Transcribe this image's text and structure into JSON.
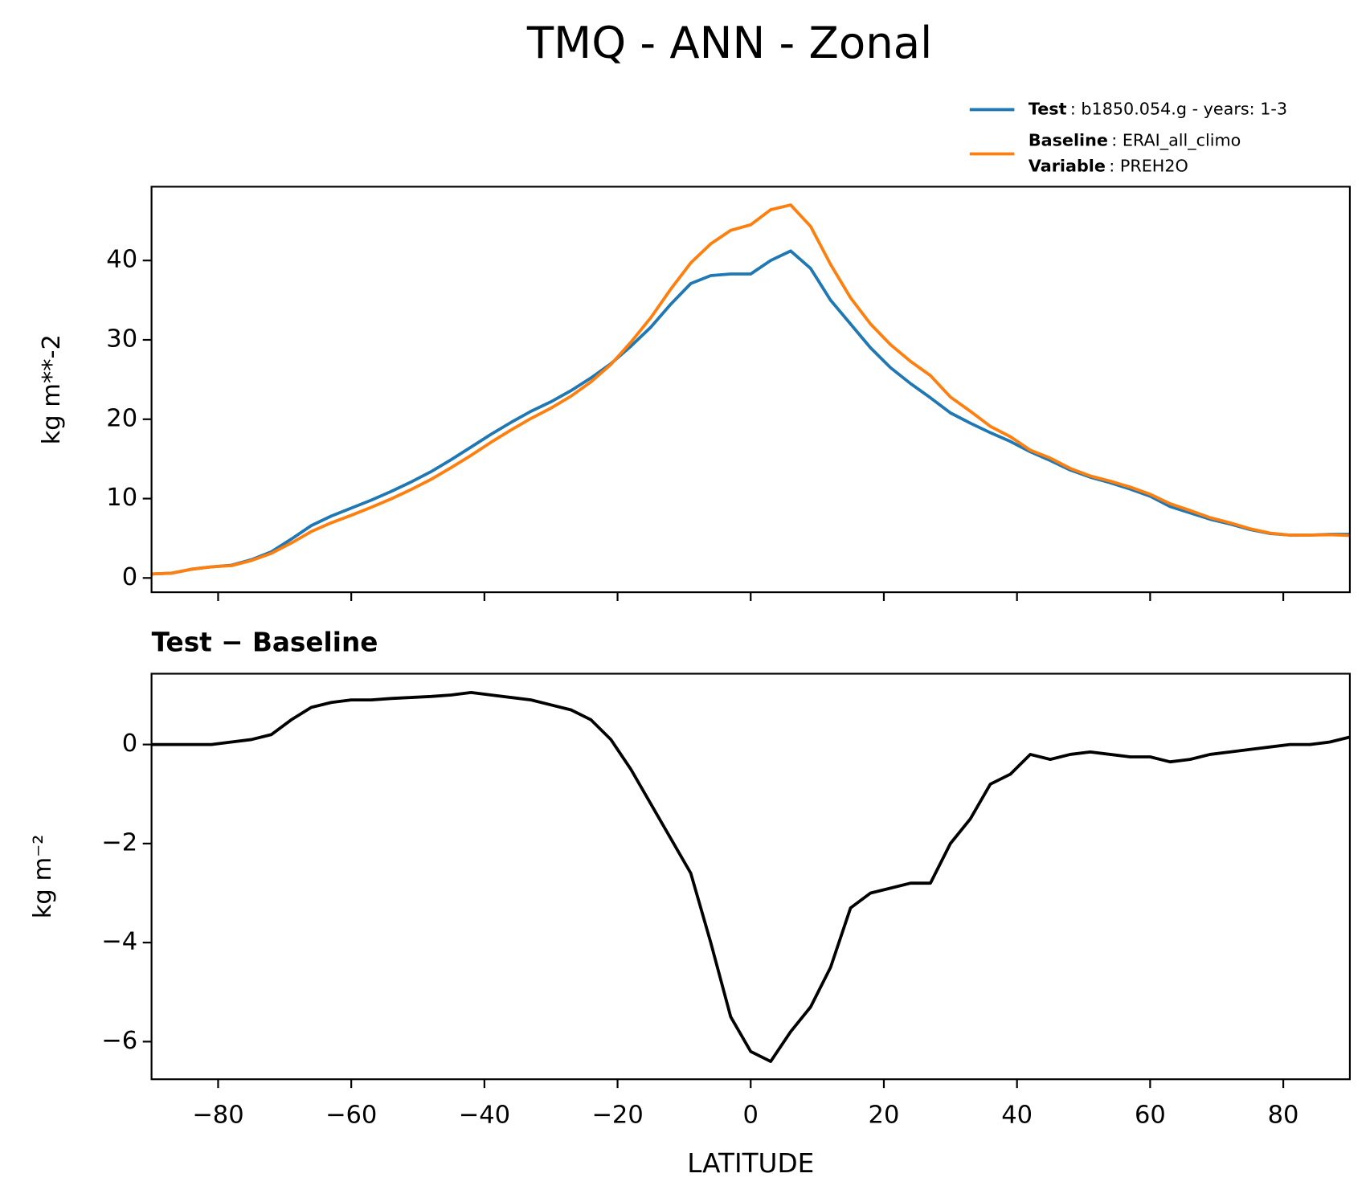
{
  "chart_data": [
    {
      "type": "line",
      "title": "TMQ - ANN - Zonal",
      "ylabel": "kg m**-2",
      "xlim": [
        -90,
        90
      ],
      "ylim": [
        -1.8,
        49.3
      ],
      "yticks": [
        0,
        10,
        20,
        30,
        40
      ],
      "x": [
        -90,
        -87,
        -84,
        -81,
        -78,
        -75,
        -72,
        -69,
        -66,
        -63,
        -60,
        -57,
        -54,
        -51,
        -48,
        -45,
        -42,
        -39,
        -36,
        -33,
        -30,
        -27,
        -24,
        -21,
        -18,
        -15,
        -12,
        -9,
        -6,
        -3,
        0,
        3,
        6,
        9,
        12,
        15,
        18,
        21,
        24,
        27,
        30,
        33,
        36,
        39,
        42,
        45,
        48,
        51,
        54,
        57,
        60,
        63,
        66,
        69,
        72,
        75,
        78,
        81,
        84,
        87,
        90
      ],
      "series": [
        {
          "name": "Test",
          "legend_lines": [
            {
              "key": "Test",
              "text": ": b1850.054.g - years: 1-3"
            }
          ],
          "color": "#1f77b4",
          "values": [
            0.5,
            0.6,
            1.1,
            1.4,
            1.6,
            2.3,
            3.3,
            4.9,
            6.6,
            7.8,
            8.8,
            9.8,
            10.9,
            12.1,
            13.4,
            14.9,
            16.5,
            18.1,
            19.6,
            21.0,
            22.2,
            23.6,
            25.2,
            27.0,
            29.2,
            31.6,
            34.5,
            37.1,
            38.1,
            38.3,
            38.3,
            40.0,
            41.2,
            39.0,
            35.0,
            32.0,
            29.0,
            26.5,
            24.5,
            22.7,
            20.8,
            19.5,
            18.3,
            17.2,
            15.9,
            14.8,
            13.6,
            12.7,
            12.0,
            11.2,
            10.3,
            9.0,
            8.2,
            7.4,
            6.8,
            6.1,
            5.6,
            5.4,
            5.4,
            5.5,
            5.5
          ]
        },
        {
          "name": "Baseline",
          "legend_lines": [
            {
              "key": "Baseline",
              "text": ": ERAI_all_climo"
            },
            {
              "key": "Variable",
              "text": ": PREH2O"
            }
          ],
          "color": "#ff7f0e",
          "values": [
            0.5,
            0.6,
            1.1,
            1.4,
            1.55,
            2.2,
            3.1,
            4.4,
            5.85,
            6.95,
            7.9,
            8.9,
            9.97,
            11.15,
            12.43,
            13.9,
            15.45,
            17.1,
            18.65,
            20.1,
            21.4,
            22.9,
            24.7,
            26.9,
            29.7,
            32.8,
            36.4,
            39.7,
            42.1,
            43.8,
            44.5,
            46.4,
            47.0,
            44.3,
            39.5,
            35.3,
            32.0,
            29.4,
            27.3,
            25.5,
            22.8,
            21.0,
            19.1,
            17.8,
            16.1,
            15.1,
            13.8,
            12.85,
            12.2,
            11.45,
            10.55,
            9.35,
            8.5,
            7.6,
            6.95,
            6.2,
            5.65,
            5.4,
            5.4,
            5.45,
            5.35
          ]
        }
      ]
    },
    {
      "type": "line",
      "title": "Test − Baseline",
      "ylabel": "kg m⁻²",
      "xlabel": "LATITUDE",
      "xlim": [
        -90,
        90
      ],
      "ylim": [
        -6.76,
        1.43
      ],
      "xticks": [
        {
          "value": -80,
          "label": "−80"
        },
        {
          "value": -60,
          "label": "−60"
        },
        {
          "value": -40,
          "label": "−40"
        },
        {
          "value": -20,
          "label": "−20"
        },
        0,
        20,
        40,
        60,
        80
      ],
      "yticks": [
        {
          "value": -6,
          "label": "−6"
        },
        {
          "value": -4,
          "label": "−4"
        },
        {
          "value": -2,
          "label": "−2"
        },
        0
      ],
      "x": [
        -90,
        -87,
        -84,
        -81,
        -78,
        -75,
        -72,
        -69,
        -66,
        -63,
        -60,
        -57,
        -54,
        -51,
        -48,
        -45,
        -42,
        -39,
        -36,
        -33,
        -30,
        -27,
        -24,
        -21,
        -18,
        -15,
        -12,
        -9,
        -6,
        -3,
        0,
        3,
        6,
        9,
        12,
        15,
        18,
        21,
        24,
        27,
        30,
        33,
        36,
        39,
        42,
        45,
        48,
        51,
        54,
        57,
        60,
        63,
        66,
        69,
        72,
        75,
        78,
        81,
        84,
        87,
        90
      ],
      "series": [
        {
          "color": "#000000",
          "values": [
            0.0,
            0.0,
            0.0,
            0.0,
            0.05,
            0.1,
            0.2,
            0.5,
            0.75,
            0.85,
            0.9,
            0.9,
            0.93,
            0.95,
            0.97,
            1.0,
            1.05,
            1.0,
            0.95,
            0.9,
            0.8,
            0.7,
            0.5,
            0.1,
            -0.5,
            -1.2,
            -1.9,
            -2.6,
            -4.0,
            -5.5,
            -6.2,
            -6.4,
            -5.8,
            -5.3,
            -4.5,
            -3.3,
            -3.0,
            -2.9,
            -2.8,
            -2.8,
            -2.0,
            -1.5,
            -0.8,
            -0.6,
            -0.2,
            -0.3,
            -0.2,
            -0.15,
            -0.2,
            -0.25,
            -0.25,
            -0.35,
            -0.3,
            -0.2,
            -0.15,
            -0.1,
            -0.05,
            0.0,
            0.0,
            0.05,
            0.15
          ]
        }
      ]
    }
  ]
}
